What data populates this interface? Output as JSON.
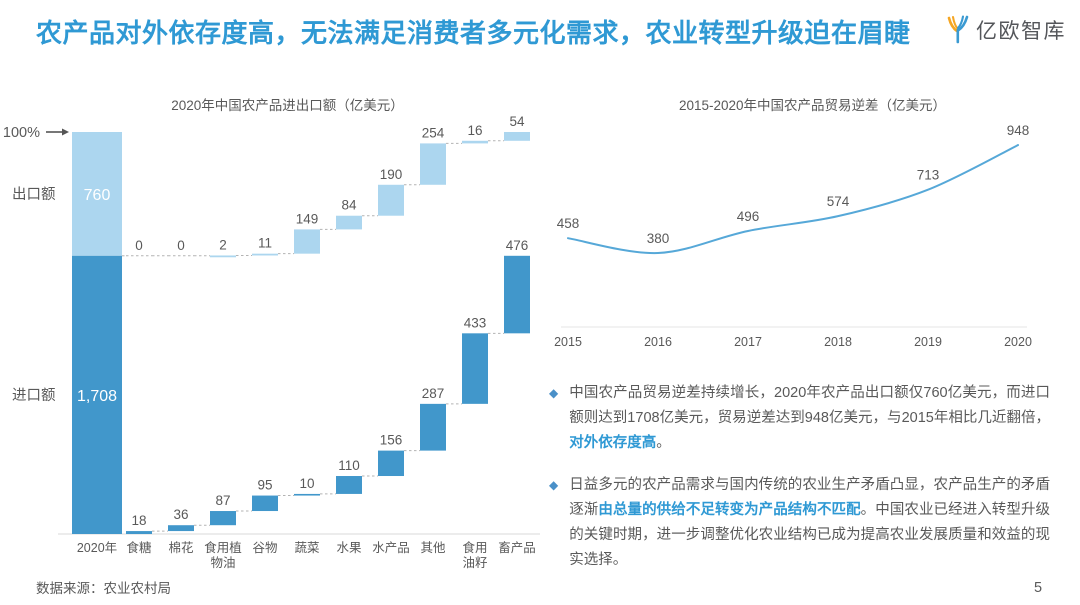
{
  "slide": {
    "title": "农产品对外依存度高，无法满足消费者多元化需求，农业转型升级迫在眉睫",
    "logo_text": "亿欧智库",
    "source": "数据来源：农业农村局",
    "page_number": "5"
  },
  "colors": {
    "title_blue": "#2F99D4",
    "dark_bar": "#4197CB",
    "light_bar": "#ACD6EF",
    "line_blue": "#56A8D8",
    "text_gray": "#595959",
    "axis_gray": "#D9D9D9",
    "dash_gray": "#B3B3B3",
    "highlight_blue": "#2F99D4",
    "diamond_blue": "#4A90C8"
  },
  "chart_data": [
    {
      "type": "bar",
      "subtype": "stacked-waterfall",
      "title": "2020年中国农产品进出口额（亿美元）",
      "axis_annotation": "100%",
      "total_category": "2020年",
      "categories": [
        "食糖",
        "棉花",
        "食用植\n物油",
        "谷物",
        "蔬菜",
        "水果",
        "水产品",
        "其他",
        "食用\n油籽",
        "畜产品"
      ],
      "series": [
        {
          "name": "出口额",
          "total": 760,
          "total_label": "760",
          "values": [
            0,
            0,
            2,
            11,
            149,
            84,
            190,
            254,
            16,
            54
          ]
        },
        {
          "name": "进口额",
          "total": 1708,
          "total_label": "1,708",
          "values": [
            18,
            36,
            87,
            95,
            10,
            110,
            156,
            287,
            433,
            476
          ]
        }
      ],
      "grid": false
    },
    {
      "type": "line",
      "title": "2015-2020年中国农产品贸易逆差（亿美元）",
      "x": [
        "2015",
        "2016",
        "2017",
        "2018",
        "2019",
        "2020"
      ],
      "values": [
        458,
        380,
        496,
        574,
        713,
        948
      ],
      "ylim": [
        300,
        1000
      ],
      "smooth": true,
      "grid": false,
      "legend": "none"
    }
  ],
  "bullets": [
    {
      "segments": [
        {
          "text": "中国农产品贸易逆差持续增长，2020年农产品出口额仅760亿美元，而进口额则达到1708亿美元，贸易逆差达到948亿美元，与2015年相比几近翻倍，",
          "highlight": false
        },
        {
          "text": "对外依存度高",
          "highlight": true
        },
        {
          "text": "。",
          "highlight": false
        }
      ]
    },
    {
      "segments": [
        {
          "text": "日益多元的农产品需求与国内传统的农业生产矛盾凸显，农产品生产的矛盾逐渐",
          "highlight": false
        },
        {
          "text": "由总量的供给不足转变为产品结构不匹配",
          "highlight": true
        },
        {
          "text": "。中国农业已经进入转型升级的关键时期，进一步调整优化农业结构已成为提高农业发展质量和效益的现实选择。",
          "highlight": false
        }
      ]
    }
  ]
}
